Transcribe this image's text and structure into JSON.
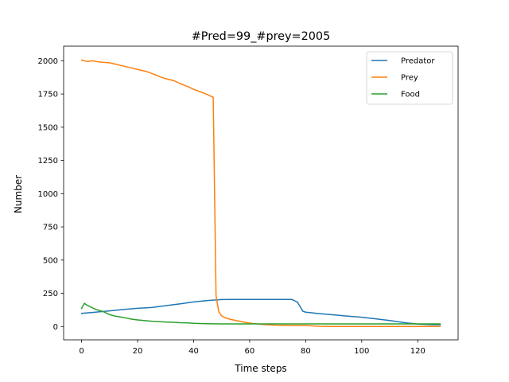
{
  "chart_data": {
    "type": "line",
    "title": "#Pred=99_#prey=2005",
    "xlabel": "Time steps",
    "ylabel": "Number",
    "xlim": [
      -6.4,
      134.4
    ],
    "ylim": [
      -100,
      2110
    ],
    "xticks": [
      0,
      20,
      40,
      60,
      80,
      100,
      120
    ],
    "yticks": [
      0,
      250,
      500,
      750,
      1000,
      1250,
      1500,
      1750,
      2000
    ],
    "legend": "top-right",
    "grid": false,
    "series": [
      {
        "name": "Predator",
        "color": "#1f77b4",
        "x": [
          0,
          5,
          10,
          15,
          20,
          25,
          30,
          35,
          40,
          45,
          50,
          55,
          60,
          65,
          70,
          75,
          77,
          79,
          80,
          85,
          90,
          95,
          100,
          105,
          110,
          115,
          120,
          125,
          128
        ],
        "y": [
          99,
          108,
          118,
          128,
          137,
          143,
          157,
          170,
          185,
          196,
          203,
          204,
          204,
          204,
          204,
          204,
          185,
          115,
          108,
          97,
          88,
          78,
          70,
          58,
          45,
          30,
          18,
          14,
          14
        ]
      },
      {
        "name": "Prey",
        "color": "#ff7f0e",
        "x": [
          0,
          2,
          4,
          6,
          8,
          10,
          12,
          15,
          18,
          20,
          23,
          25,
          28,
          30,
          33,
          35,
          38,
          40,
          42,
          45,
          47,
          48,
          49,
          50,
          52,
          55,
          60,
          65,
          70,
          75,
          80,
          85,
          90,
          100,
          110,
          120,
          128
        ],
        "y": [
          2005,
          1995,
          2000,
          1992,
          1988,
          1985,
          1975,
          1960,
          1945,
          1935,
          1920,
          1905,
          1880,
          1865,
          1850,
          1830,
          1805,
          1785,
          1770,
          1745,
          1725,
          230,
          110,
          80,
          60,
          45,
          25,
          15,
          10,
          8,
          8,
          2,
          0,
          0,
          0,
          0,
          0
        ]
      },
      {
        "name": "Food",
        "color": "#2ca02c",
        "x": [
          0,
          1,
          2,
          3,
          5,
          8,
          10,
          12,
          15,
          18,
          20,
          23,
          25,
          28,
          30,
          33,
          35,
          38,
          40,
          45,
          50,
          60,
          70,
          80,
          90,
          100,
          110,
          120,
          128
        ],
        "y": [
          135,
          175,
          160,
          150,
          130,
          110,
          90,
          78,
          68,
          55,
          50,
          44,
          40,
          36,
          34,
          32,
          29,
          27,
          24,
          21,
          20,
          20,
          20,
          20,
          20,
          20,
          20,
          20,
          20
        ]
      }
    ]
  }
}
